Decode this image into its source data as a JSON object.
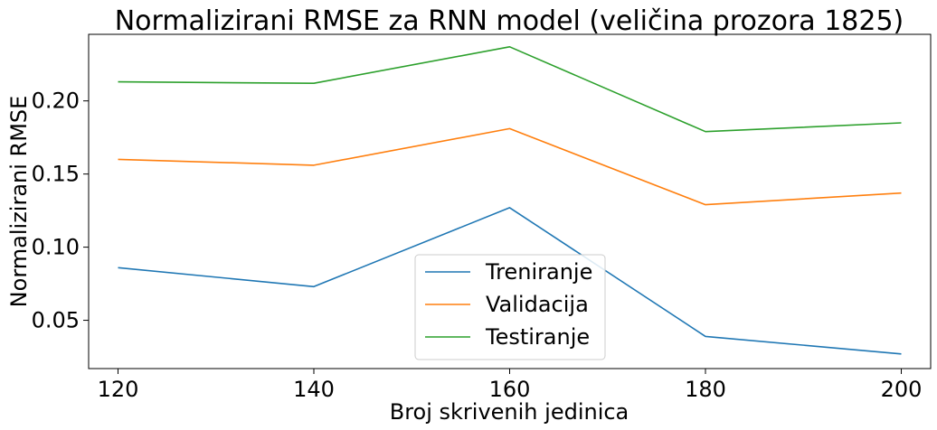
{
  "chart_data": {
    "type": "line",
    "title": "Normalizirani RMSE za RNN model (veličina prozora 1825)",
    "xlabel": "Broj skrivenih jedinica",
    "ylabel": "Normalizirani RMSE",
    "x": [
      120,
      140,
      160,
      180,
      200
    ],
    "xlim": [
      117,
      203
    ],
    "ylim": [
      0.017,
      0.2455
    ],
    "xticks": [
      120,
      140,
      160,
      180,
      200
    ],
    "xtick_labels": [
      "120",
      "140",
      "160",
      "180",
      "200"
    ],
    "yticks": [
      0.05,
      0.1,
      0.15,
      0.2
    ],
    "ytick_labels": [
      "0.05",
      "0.10",
      "0.15",
      "0.20"
    ],
    "grid": false,
    "legend_position": "lower-center",
    "series": [
      {
        "name": "Treniranje",
        "color": "#1f77b4",
        "values": [
          0.086,
          0.073,
          0.127,
          0.039,
          0.027
        ]
      },
      {
        "name": "Validacija",
        "color": "#ff7f0e",
        "values": [
          0.16,
          0.156,
          0.181,
          0.129,
          0.137
        ]
      },
      {
        "name": "Testiranje",
        "color": "#2ca02c",
        "values": [
          0.213,
          0.212,
          0.237,
          0.179,
          0.185
        ]
      }
    ]
  }
}
